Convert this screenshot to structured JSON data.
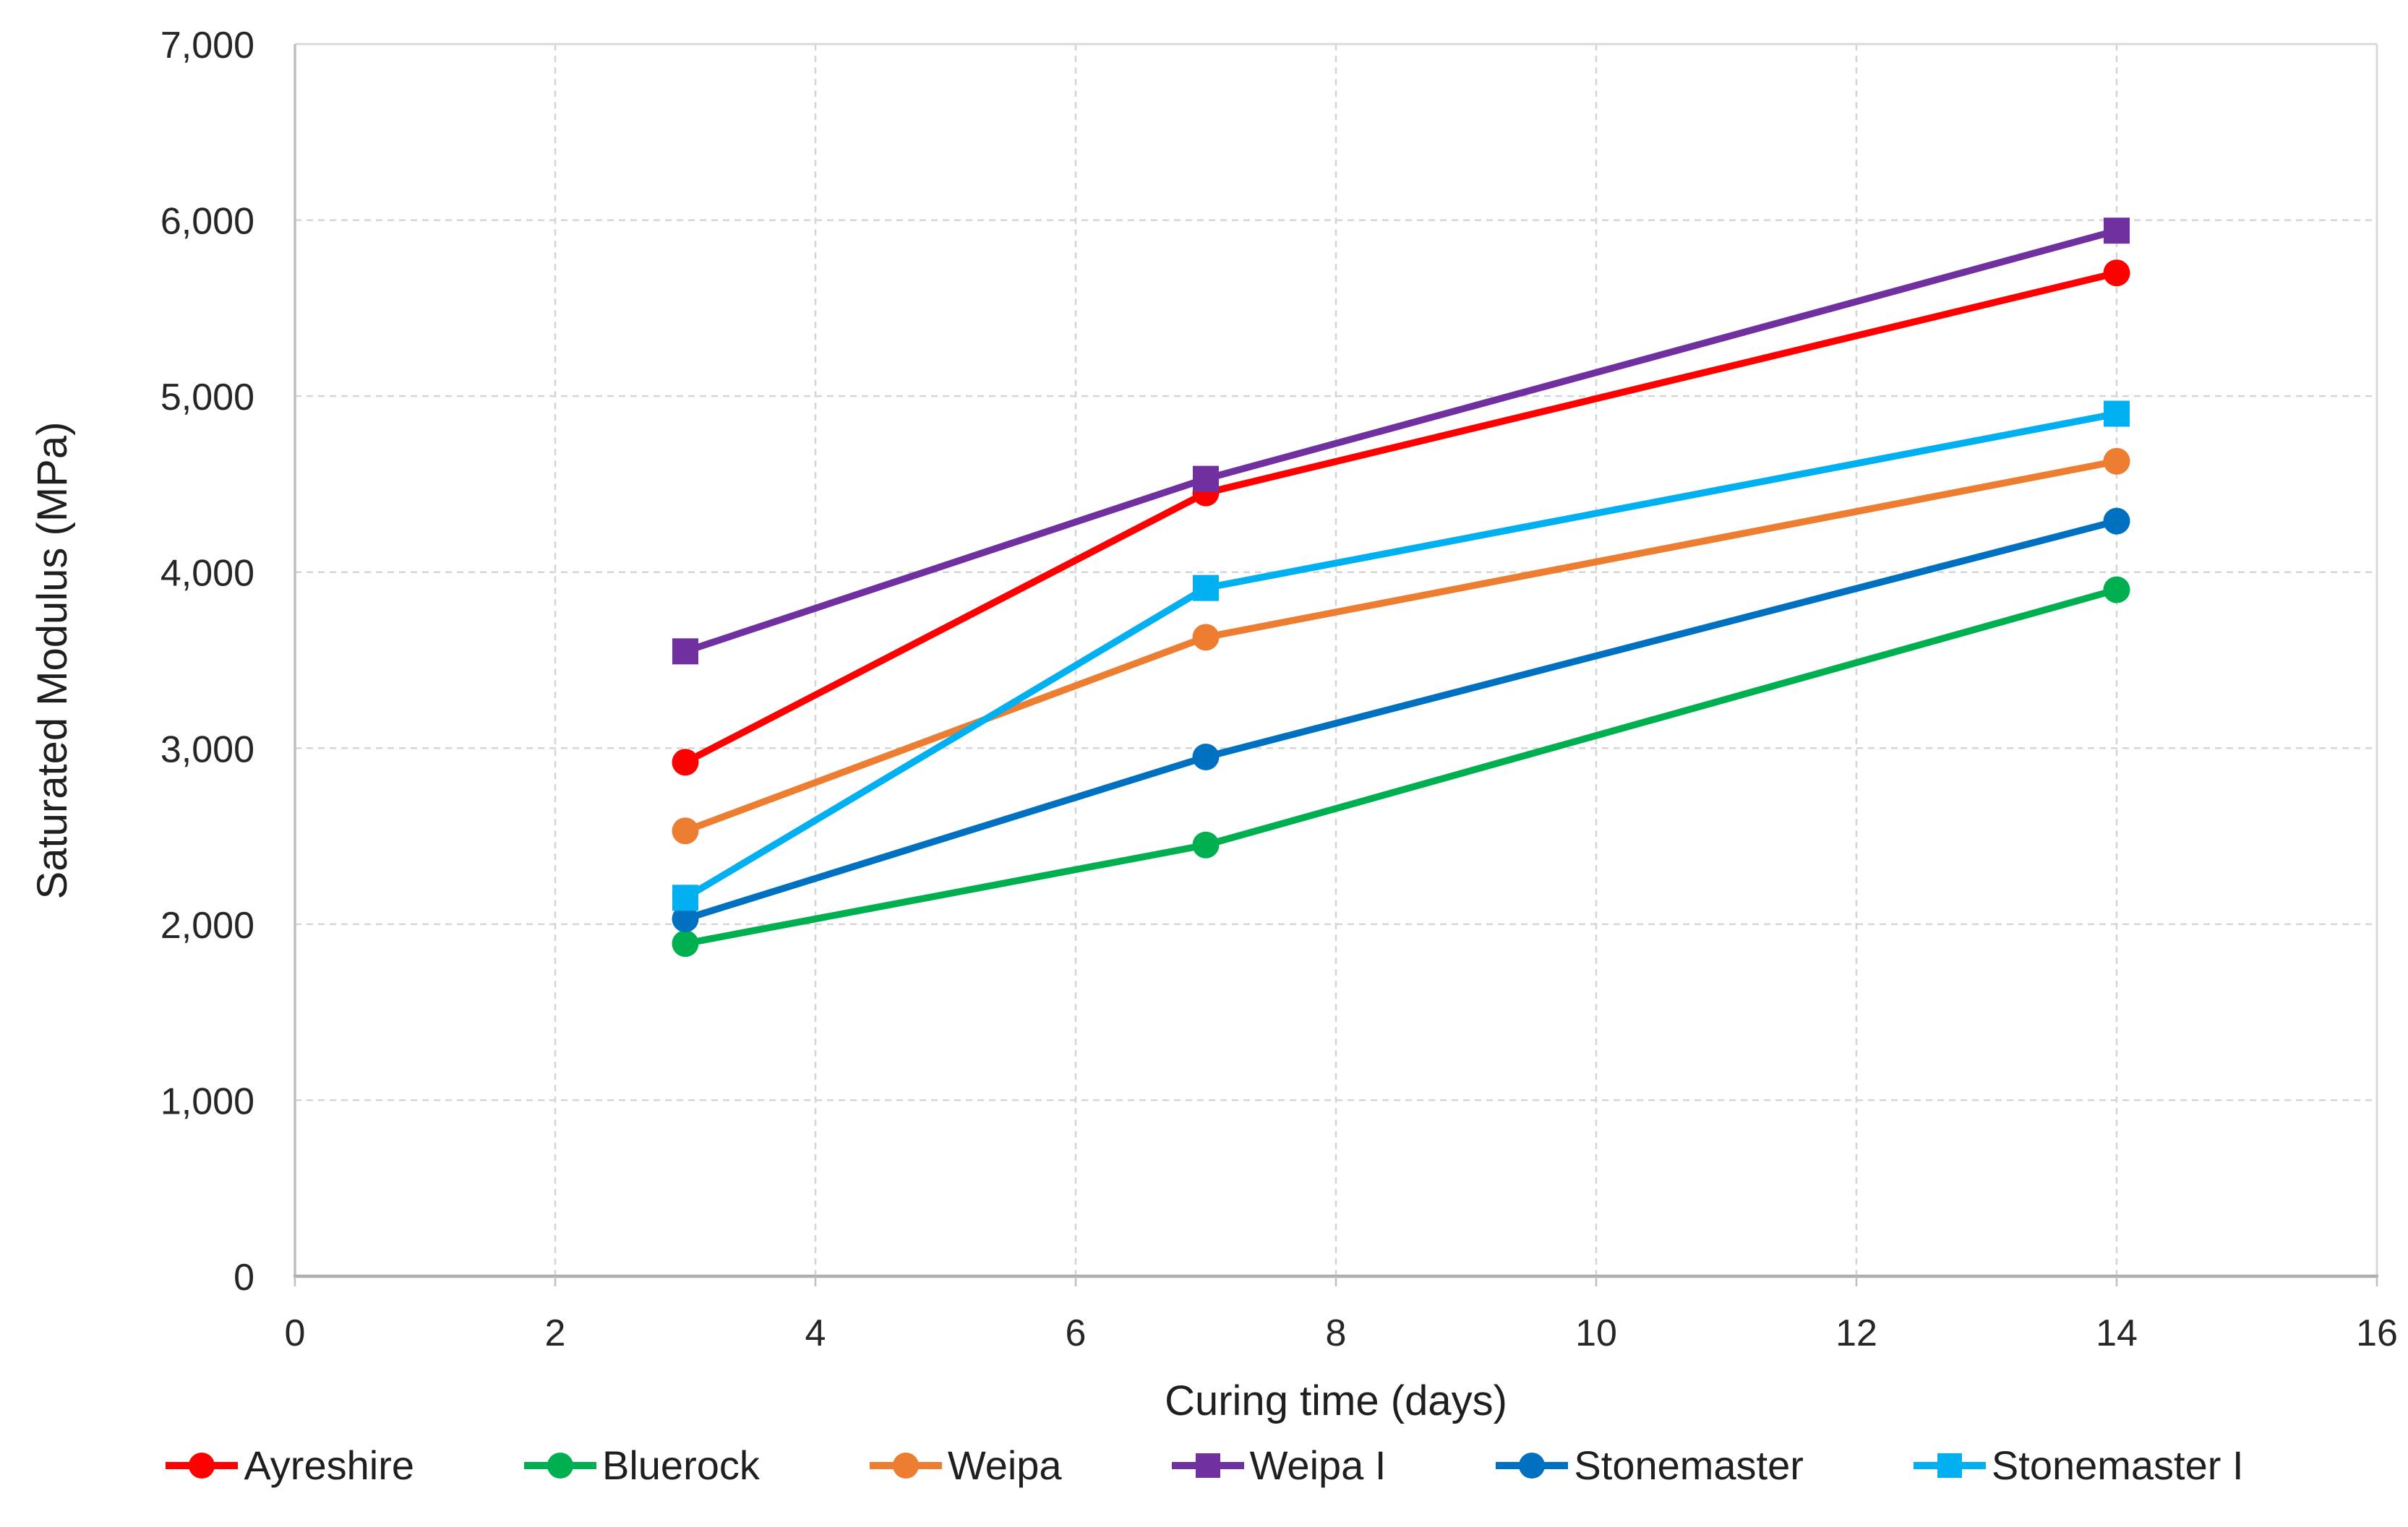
{
  "chart_data": {
    "type": "line",
    "title": "",
    "xlabel": "Curing time (days)",
    "ylabel": "Saturated Modulus (MPa)",
    "xlim": [
      0,
      16
    ],
    "ylim": [
      0,
      7000
    ],
    "x_ticks": [
      0,
      2,
      4,
      6,
      8,
      10,
      12,
      14,
      16
    ],
    "x_tick_labels": [
      "0",
      "2",
      "4",
      "6",
      "8",
      "10",
      "12",
      "14",
      "16"
    ],
    "y_ticks": [
      0,
      1000,
      2000,
      3000,
      4000,
      5000,
      6000,
      7000
    ],
    "y_tick_labels": [
      "0",
      "1,000",
      "2,000",
      "3,000",
      "4,000",
      "5,000",
      "6,000",
      "7,000"
    ],
    "grid": "dashed",
    "grid_color": "#d6d6d6",
    "axis_line_color": "#bfbfbf",
    "plot_border_color": "#d9d9d9",
    "text_color": "#262626",
    "legend_position": "bottom",
    "x": [
      3,
      7,
      14
    ],
    "series": [
      {
        "name": "Ayreshire",
        "color": "#ff0000",
        "marker": "circle",
        "values": [
          2920,
          4450,
          5700
        ]
      },
      {
        "name": "Bluerock",
        "color": "#00b050",
        "marker": "circle",
        "values": [
          1890,
          2450,
          3900
        ]
      },
      {
        "name": "Weipa",
        "color": "#ed7d31",
        "marker": "circle",
        "values": [
          2530,
          3630,
          4630
        ]
      },
      {
        "name": "Weipa I",
        "color": "#7030a0",
        "marker": "square",
        "values": [
          3550,
          4530,
          5940
        ]
      },
      {
        "name": "Stonemaster",
        "color": "#0070c0",
        "marker": "circle",
        "values": [
          2030,
          2950,
          4290
        ]
      },
      {
        "name": "Stonemaster I",
        "color": "#00b0f0",
        "marker": "square",
        "values": [
          2150,
          3910,
          4900
        ]
      }
    ]
  }
}
